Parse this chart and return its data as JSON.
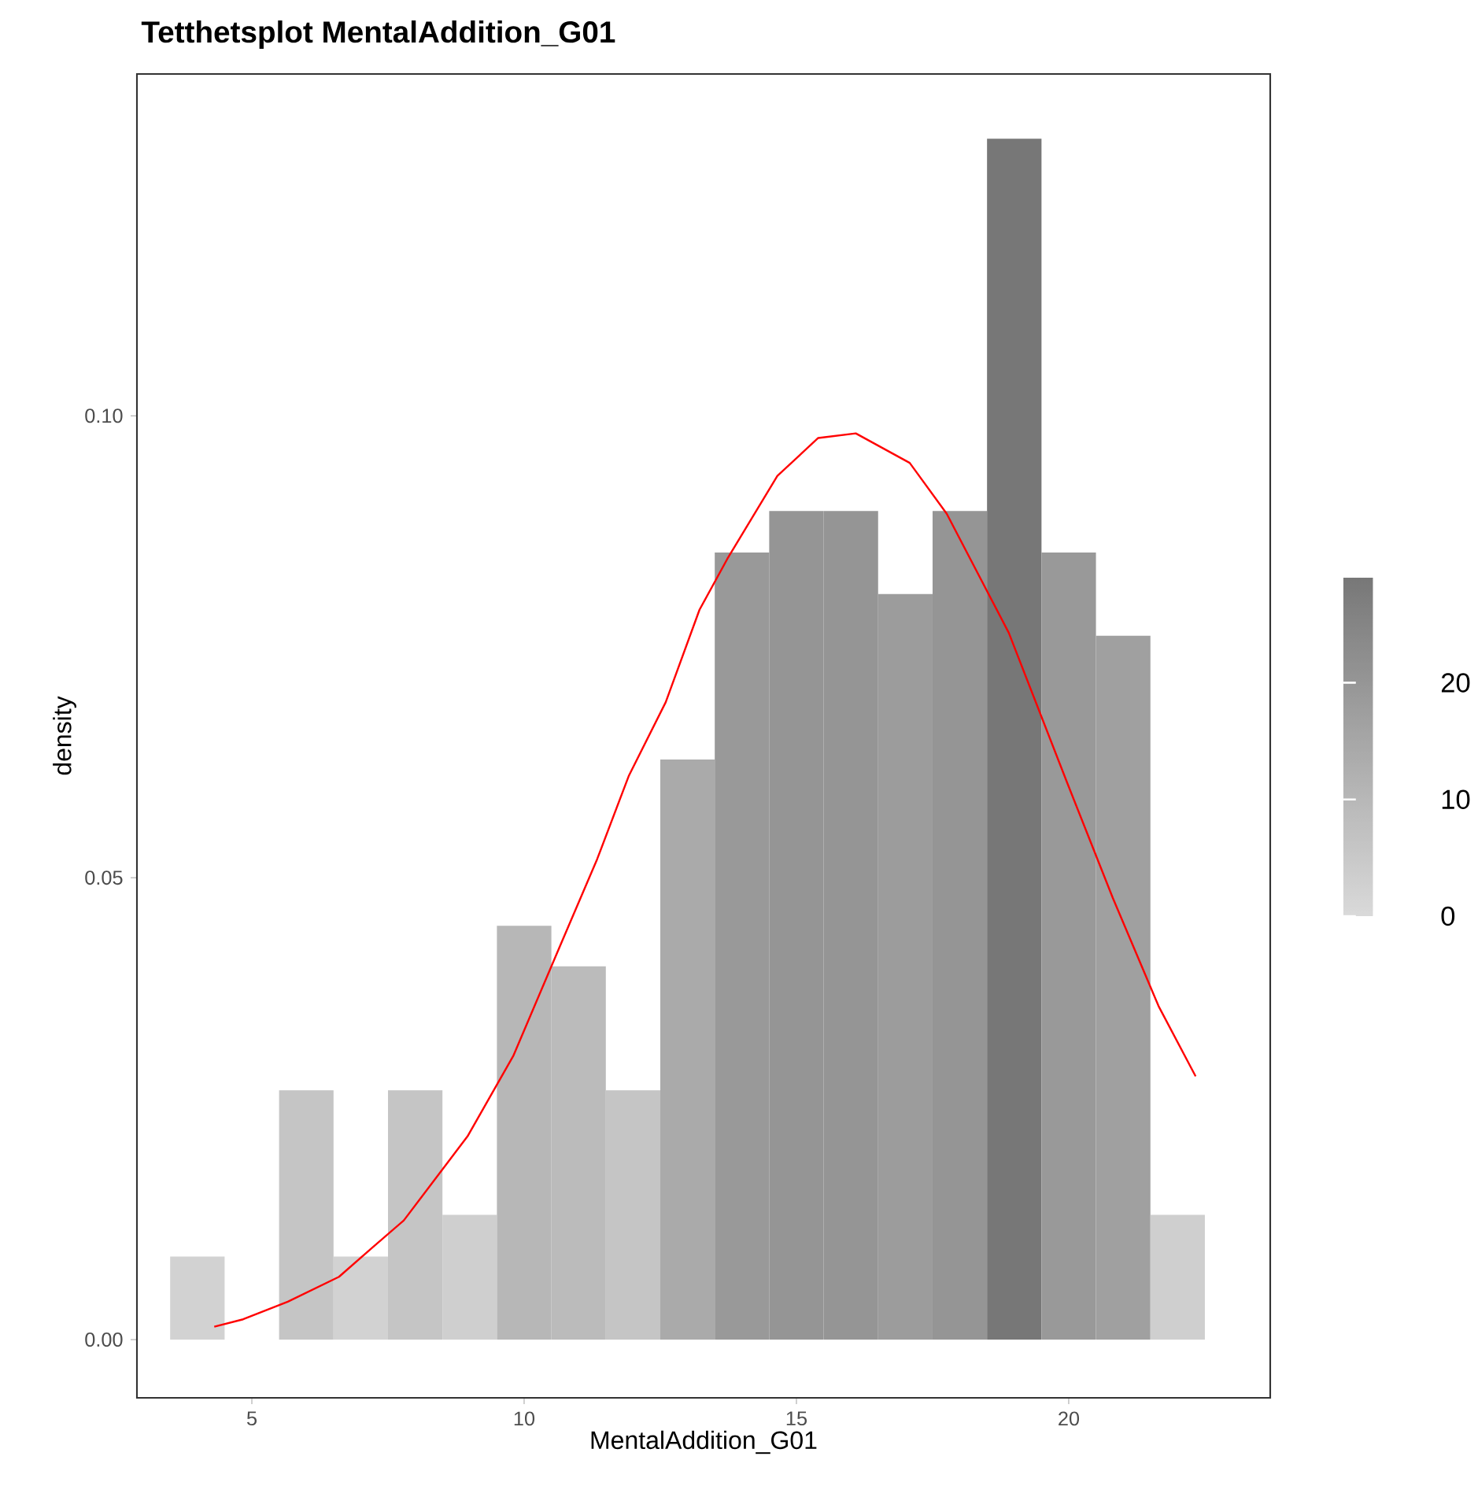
{
  "chart_data": {
    "type": "histogram",
    "title": "Tetthetsplot MentalAddition_G01",
    "xlabel": "MentalAddition_G01",
    "ylabel": "density",
    "bins": [
      3.5,
      4.5,
      5.5,
      6.5,
      7.5,
      8.5,
      9.5,
      10.5,
      11.5,
      12.5,
      13.5,
      14.5,
      15.5,
      16.5,
      17.5,
      18.5,
      19.5,
      20.5,
      21.5,
      22.5
    ],
    "values": [
      0.009,
      0,
      0.027,
      0.009,
      0.027,
      0.0135,
      0.0448,
      0.0404,
      0.027,
      0.0628,
      0.0852,
      0.0897,
      0.0897,
      0.0807,
      0.0897,
      0.13,
      0.0852,
      0.0762,
      0.0135
    ],
    "colors": [
      "#d2d2d2",
      "#d9d9d9",
      "#c5c5c5",
      "#d2d2d2",
      "#c5c5c5",
      "#cfcfcf",
      "#b7b7b7",
      "#bbbbbb",
      "#c5c5c5",
      "#aaaaaa",
      "#999999",
      "#959595",
      "#959595",
      "#9c9c9c",
      "#959595",
      "#777777",
      "#999999",
      "#a0a0a0",
      "#cfcfcf"
    ],
    "clim": [
      0,
      29
    ],
    "cticks": [
      0,
      10,
      20
    ],
    "series": [
      {
        "type": "line",
        "color": "#ff0000",
        "x": [
          4.31,
          4.84,
          5.66,
          6.6,
          7.2,
          7.79,
          8.96,
          9.8,
          10.68,
          11.34,
          11.92,
          12.6,
          13.22,
          13.73,
          14.65,
          15.4,
          16.09,
          17.08,
          17.76,
          18.9,
          19.97,
          20.81,
          21.65,
          22.33
        ],
        "values": [
          0.0014,
          0.0022,
          0.0041,
          0.0068,
          0.0099,
          0.0129,
          0.022,
          0.0307,
          0.0429,
          0.052,
          0.061,
          0.069,
          0.079,
          0.0845,
          0.0935,
          0.0976,
          0.0981,
          0.0949,
          0.0894,
          0.0765,
          0.0603,
          0.0478,
          0.0361,
          0.0285
        ]
      }
    ],
    "xlim": [
      2.89,
      23.7
    ],
    "ylim": [
      -0.0063,
      0.137
    ],
    "xticks": [
      5,
      10,
      15,
      20
    ],
    "yticks": [
      {
        "value": 0,
        "label": "0.00"
      },
      {
        "value": 0.05,
        "label": "0.05"
      },
      {
        "value": 0.1,
        "label": "0.10"
      }
    ],
    "grid": false
  }
}
